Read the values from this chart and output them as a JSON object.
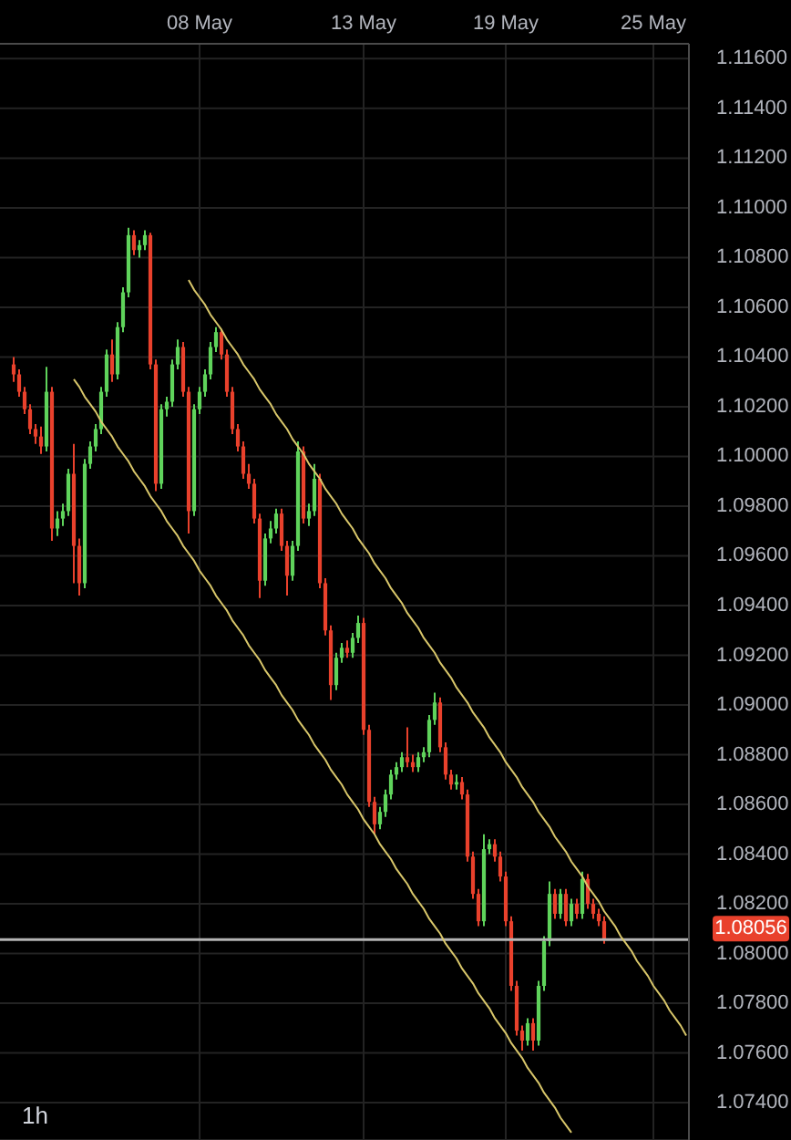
{
  "chart_data": {
    "type": "candlestick",
    "categories": [
      null,
      null,
      null,
      null,
      null,
      null,
      null,
      null,
      null,
      null,
      null,
      null,
      null,
      null,
      null,
      null,
      null,
      null,
      null,
      null,
      null,
      null,
      null,
      null,
      null,
      null,
      null,
      null,
      null,
      null,
      null,
      null,
      null,
      null,
      null,
      null,
      "08 May",
      null,
      null,
      null,
      null,
      null,
      null,
      null,
      null,
      null,
      null,
      null,
      null,
      null,
      null,
      null,
      null,
      null,
      null,
      null,
      null,
      null,
      null,
      null,
      null,
      null,
      null,
      null,
      null,
      null,
      "13 May",
      null,
      null,
      null,
      null,
      null,
      null,
      null,
      null,
      null,
      null,
      null,
      null,
      null,
      null,
      null,
      null,
      null,
      null,
      null,
      null,
      null,
      null,
      null,
      null,
      null,
      "19 May",
      null,
      null,
      null,
      null,
      null,
      null,
      null,
      null,
      null,
      null,
      null,
      null,
      null,
      null,
      null,
      null,
      null,
      null,
      null,
      null,
      null,
      null,
      null,
      null,
      null,
      null,
      "25 May",
      null,
      null,
      null,
      null,
      null,
      null
    ],
    "ohlc": [
      null,
      null,
      [
        1.1037,
        1.104,
        1.103,
        1.1033
      ],
      [
        1.1033,
        1.1035,
        1.1024,
        1.1026
      ],
      [
        1.1026,
        1.1028,
        1.1017,
        1.1019
      ],
      [
        1.1019,
        1.1021,
        1.1009,
        1.1011
      ],
      [
        1.1011,
        1.1013,
        1.1005,
        1.1008
      ],
      [
        1.1008,
        1.1012,
        1.1001,
        1.1004
      ],
      [
        1.1004,
        1.1036,
        1.1002,
        1.1026
      ],
      [
        1.1026,
        1.1028,
        1.0966,
        1.0971
      ],
      [
        1.0971,
        1.0978,
        1.0968,
        1.0975
      ],
      [
        1.0975,
        1.0981,
        1.0972,
        1.0978
      ],
      [
        1.0978,
        1.0995,
        1.0976,
        1.0993
      ],
      [
        1.0993,
        1.1005,
        1.0949,
        1.0964
      ],
      [
        1.0964,
        1.0967,
        1.0944,
        1.0949
      ],
      [
        1.0949,
        1.0999,
        1.0947,
        1.0997
      ],
      [
        1.0997,
        1.1006,
        1.0995,
        1.1004
      ],
      [
        1.1004,
        1.1013,
        1.1002,
        1.1011
      ],
      [
        1.1011,
        1.1028,
        1.1009,
        1.1026
      ],
      [
        1.1026,
        1.1043,
        1.1024,
        1.1041
      ],
      [
        1.1041,
        1.1047,
        1.103,
        1.1033
      ],
      [
        1.1033,
        1.1054,
        1.1031,
        1.1052
      ],
      [
        1.1052,
        1.1068,
        1.105,
        1.1066
      ],
      [
        1.1066,
        1.1092,
        1.1064,
        1.1089
      ],
      [
        1.1089,
        1.1091,
        1.1081,
        1.1083
      ],
      [
        1.1083,
        1.1087,
        1.108,
        1.1085
      ],
      [
        1.1085,
        1.1091,
        1.1083,
        1.1089
      ],
      [
        1.1089,
        1.109,
        1.1035,
        1.1037
      ],
      [
        1.1037,
        1.1039,
        1.0986,
        1.0989
      ],
      [
        1.0989,
        1.1021,
        1.0987,
        1.1019
      ],
      [
        1.1019,
        1.1024,
        1.1016,
        1.1022
      ],
      [
        1.1022,
        1.1039,
        1.102,
        1.1037
      ],
      [
        1.1037,
        1.1047,
        1.1035,
        1.1044
      ],
      [
        1.1044,
        1.1046,
        1.1024,
        1.1026
      ],
      [
        1.1026,
        1.1028,
        1.0969,
        1.0978
      ],
      [
        1.0978,
        1.1021,
        1.0976,
        1.1019
      ],
      [
        1.1019,
        1.1028,
        1.1017,
        1.1026
      ],
      [
        1.1026,
        1.1035,
        1.1024,
        1.1033
      ],
      [
        1.1033,
        1.1046,
        1.1031,
        1.1044
      ],
      [
        1.1044,
        1.1052,
        1.1042,
        1.105
      ],
      [
        1.105,
        1.1051,
        1.1039,
        1.1041
      ],
      [
        1.1041,
        1.1043,
        1.1024,
        1.1026
      ],
      [
        1.1026,
        1.1028,
        1.1009,
        1.1011
      ],
      [
        1.1011,
        1.1013,
        1.1002,
        1.1004
      ],
      [
        1.1004,
        1.1006,
        1.0991,
        1.0993
      ],
      [
        1.0993,
        1.0997,
        1.0987,
        1.0989
      ],
      [
        1.0989,
        1.0991,
        1.0973,
        1.0975
      ],
      [
        1.0975,
        1.0977,
        1.0943,
        1.095
      ],
      [
        1.095,
        1.0969,
        1.0948,
        1.0967
      ],
      [
        1.0967,
        1.0974,
        1.0965,
        1.0971
      ],
      [
        1.0971,
        1.0979,
        1.0969,
        1.0977
      ],
      [
        1.0977,
        1.0979,
        1.0962,
        1.0964
      ],
      [
        1.0964,
        1.0966,
        1.0944,
        1.0952
      ],
      [
        1.0952,
        1.0966,
        1.095,
        1.0964
      ],
      [
        1.0964,
        1.1006,
        1.0962,
        1.1002
      ],
      [
        1.1002,
        1.1004,
        1.0973,
        1.0975
      ],
      [
        1.0975,
        1.0981,
        1.0972,
        1.0978
      ],
      [
        1.0978,
        1.0997,
        1.0976,
        1.0991
      ],
      [
        1.0991,
        1.0993,
        1.0947,
        1.0949
      ],
      [
        1.0949,
        1.0951,
        1.0928,
        1.093
      ],
      [
        1.093,
        1.0932,
        1.0902,
        1.0908
      ],
      [
        1.0908,
        1.0921,
        1.0906,
        1.0919
      ],
      [
        1.0919,
        1.0925,
        1.0917,
        1.0923
      ],
      [
        1.0923,
        1.0926,
        1.0919,
        1.0921
      ],
      [
        1.0921,
        1.0929,
        1.0919,
        1.0927
      ],
      [
        1.0927,
        1.0936,
        1.0925,
        1.0933
      ],
      [
        1.0933,
        1.0935,
        1.0888,
        1.089
      ],
      [
        1.089,
        1.0892,
        1.0859,
        1.0861
      ],
      [
        1.0861,
        1.0863,
        1.0848,
        1.0852
      ],
      [
        1.0852,
        1.0859,
        1.085,
        1.0857
      ],
      [
        1.0857,
        1.0866,
        1.0855,
        1.0864
      ],
      [
        1.0864,
        1.0874,
        1.0862,
        1.0872
      ],
      [
        1.0872,
        1.0877,
        1.087,
        1.0875
      ],
      [
        1.0875,
        1.0881,
        1.0873,
        1.0879
      ],
      [
        1.0879,
        1.0891,
        1.0875,
        1.0877
      ],
      [
        1.0877,
        1.088,
        1.0873,
        1.0875
      ],
      [
        1.0875,
        1.0881,
        1.0873,
        1.0879
      ],
      [
        1.0879,
        1.0883,
        1.0877,
        1.0881
      ],
      [
        1.0881,
        1.0896,
        1.0879,
        1.0894
      ],
      [
        1.0894,
        1.0905,
        1.0892,
        1.0901
      ],
      [
        1.0901,
        1.0903,
        1.0881,
        1.0883
      ],
      [
        1.0883,
        1.0885,
        1.087,
        1.0872
      ],
      [
        1.0872,
        1.0874,
        1.0866,
        1.0868
      ],
      [
        1.0868,
        1.0872,
        1.0866,
        1.0869
      ],
      [
        1.0869,
        1.0871,
        1.0862,
        1.0864
      ],
      [
        1.0864,
        1.0866,
        1.0837,
        1.0839
      ],
      [
        1.0839,
        1.0841,
        1.0822,
        1.0824
      ],
      [
        1.0824,
        1.0826,
        1.0811,
        1.0813
      ],
      [
        1.0813,
        1.0848,
        1.0811,
        1.0842
      ],
      [
        1.0842,
        1.0846,
        1.084,
        1.0844
      ],
      [
        1.0844,
        1.0846,
        1.0837,
        1.0839
      ],
      [
        1.0839,
        1.0841,
        1.0829,
        1.0831
      ],
      [
        1.0831,
        1.0833,
        1.0811,
        1.0813
      ],
      [
        1.0813,
        1.0815,
        1.0785,
        1.0787
      ],
      [
        1.0787,
        1.0789,
        1.0767,
        1.0769
      ],
      [
        1.0769,
        1.0771,
        1.0761,
        1.0765
      ],
      [
        1.0765,
        1.0774,
        1.0763,
        1.0772
      ],
      [
        1.0772,
        1.0774,
        1.0761,
        1.0765
      ],
      [
        1.0765,
        1.0789,
        1.0763,
        1.0787
      ],
      [
        1.0787,
        1.0807,
        1.0785,
        1.0805
      ],
      [
        1.0805,
        1.0829,
        1.0803,
        1.0824
      ],
      [
        1.0824,
        1.0826,
        1.0814,
        1.0816
      ],
      [
        1.0816,
        1.0826,
        1.0814,
        1.0824
      ],
      [
        1.0824,
        1.0826,
        1.0811,
        1.0813
      ],
      [
        1.0813,
        1.0822,
        1.0811,
        1.082
      ],
      [
        1.082,
        1.0822,
        1.0814,
        1.0816
      ],
      [
        1.0816,
        1.0833,
        1.0814,
        1.083
      ],
      [
        1.083,
        1.0832,
        1.0818,
        1.082
      ],
      [
        1.082,
        1.0822,
        1.0814,
        1.0816
      ],
      [
        1.0816,
        1.0818,
        1.0811,
        1.0813
      ],
      [
        1.0813,
        1.0815,
        1.0804,
        1.0806
      ],
      null,
      null,
      null,
      null,
      null,
      null,
      null,
      null,
      null,
      null,
      null,
      null,
      null,
      null,
      null
    ],
    "colors": [
      null,
      null,
      "#e9412c",
      "#e9412c",
      "#e9412c",
      "#e9412c",
      "#e9412c",
      "#e9412c",
      "#5fd35b",
      "#e9412c",
      "#5fd35b",
      "#5fd35b",
      "#5fd35b",
      "#e9412c",
      "#e9412c",
      "#5fd35b",
      "#5fd35b",
      "#5fd35b",
      "#5fd35b",
      "#5fd35b",
      "#e9412c",
      "#5fd35b",
      "#5fd35b",
      "#5fd35b",
      "#e9412c",
      "#5fd35b",
      "#5fd35b",
      "#e9412c",
      "#e9412c",
      "#5fd35b",
      "#5fd35b",
      "#5fd35b",
      "#5fd35b",
      "#e9412c",
      "#e9412c",
      "#5fd35b",
      "#5fd35b",
      "#5fd35b",
      "#5fd35b",
      "#5fd35b",
      "#e9412c",
      "#e9412c",
      "#e9412c",
      "#e9412c",
      "#e9412c",
      "#e9412c",
      "#e9412c",
      "#e9412c",
      "#5fd35b",
      "#5fd35b",
      "#5fd35b",
      "#e9412c",
      "#e9412c",
      "#5fd35b",
      "#5fd35b",
      "#e9412c",
      "#5fd35b",
      "#5fd35b",
      "#e9412c",
      "#e9412c",
      "#e9412c",
      "#5fd35b",
      "#5fd35b",
      "#e9412c",
      "#5fd35b",
      "#5fd35b",
      "#e9412c",
      "#e9412c",
      "#e9412c",
      "#5fd35b",
      "#5fd35b",
      "#5fd35b",
      "#5fd35b",
      "#5fd35b",
      "#e9412c",
      "#e9412c",
      "#5fd35b",
      "#5fd35b",
      "#5fd35b",
      "#5fd35b",
      "#e9412c",
      "#e9412c",
      "#e9412c",
      "#5fd35b",
      "#e9412c",
      "#e9412c",
      "#e9412c",
      "#e9412c",
      "#5fd35b",
      "#5fd35b",
      "#e9412c",
      "#e9412c",
      "#e9412c",
      "#e9412c",
      "#e9412c",
      "#e9412c",
      "#5fd35b",
      "#e9412c",
      "#5fd35b",
      "#5fd35b",
      "#5fd35b",
      "#e9412c",
      "#5fd35b",
      "#e9412c",
      "#5fd35b",
      "#e9412c",
      "#5fd35b",
      "#e9412c",
      "#e9412c",
      "#e9412c",
      "#e9412c",
      null,
      null,
      null,
      null,
      null,
      null,
      null,
      null,
      null,
      null,
      null,
      null,
      null,
      null,
      null
    ],
    "series": [
      {
        "type": "line",
        "color": "#d8c66a",
        "values": [
          null,
          null,
          null,
          null,
          null,
          null,
          null,
          null,
          null,
          null,
          null,
          null,
          null,
          null,
          null,
          null,
          null,
          null,
          null,
          null,
          null,
          null,
          null,
          null,
          null,
          null,
          null,
          null,
          null,
          null,
          null,
          null,
          null,
          null,
          1.1071,
          1.1067,
          1.1064,
          1.1061,
          1.1057,
          1.1054,
          1.1051,
          1.1047,
          1.1044,
          1.1041,
          1.1037,
          1.1034,
          1.1031,
          1.1027,
          1.1024,
          1.1021,
          1.1017,
          1.1014,
          1.1011,
          1.1007,
          1.1004,
          1.1001,
          1.0997,
          1.0994,
          1.0991,
          1.0987,
          1.0984,
          1.0981,
          1.0977,
          1.0974,
          1.0971,
          1.0967,
          1.0964,
          1.0961,
          1.0957,
          1.0954,
          1.0951,
          1.0947,
          1.0944,
          1.0941,
          1.0937,
          1.0934,
          1.0931,
          1.0927,
          1.0924,
          1.0921,
          1.0917,
          1.0914,
          1.0911,
          1.0907,
          1.0904,
          1.0901,
          1.0897,
          1.0894,
          1.0891,
          1.0887,
          1.0884,
          1.0881,
          1.0877,
          1.0874,
          1.0871,
          1.0867,
          1.0864,
          1.0861,
          1.0857,
          1.0854,
          1.0851,
          1.0847,
          1.0844,
          1.0841,
          1.0837,
          1.0834,
          1.0831,
          1.0827,
          1.0824,
          1.0821,
          1.0817,
          1.0814,
          1.0811,
          1.0807,
          1.0804,
          1.0801,
          1.0797,
          1.0794,
          1.0791,
          1.0787,
          1.0784,
          1.0781,
          1.0777,
          1.0774,
          1.0771,
          1.0767
        ]
      },
      {
        "type": "line",
        "color": "#d8c66a",
        "values": [
          null,
          null,
          null,
          null,
          null,
          null,
          null,
          null,
          null,
          null,
          null,
          null,
          null,
          1.1031,
          1.1028,
          1.1024,
          1.1021,
          1.1018,
          1.1014,
          1.1011,
          1.1008,
          1.1004,
          1.1001,
          1.0998,
          1.0994,
          1.0991,
          1.0988,
          1.0984,
          1.0981,
          1.0978,
          1.0974,
          1.0971,
          1.0968,
          1.0964,
          1.0961,
          1.0958,
          1.0954,
          1.0951,
          1.0948,
          1.0944,
          1.0941,
          1.0938,
          1.0934,
          1.0931,
          1.0928,
          1.0924,
          1.0921,
          1.0918,
          1.0914,
          1.0911,
          1.0908,
          1.0904,
          1.0901,
          1.0898,
          1.0894,
          1.0891,
          1.0888,
          1.0884,
          1.0881,
          1.0878,
          1.0874,
          1.0871,
          1.0868,
          1.0864,
          1.0861,
          1.0858,
          1.0854,
          1.0851,
          1.0848,
          1.0844,
          1.0841,
          1.0838,
          1.0834,
          1.0831,
          1.0828,
          1.0824,
          1.0821,
          1.0818,
          1.0814,
          1.0811,
          1.0808,
          1.0804,
          1.0801,
          1.0798,
          1.0794,
          1.0791,
          1.0788,
          1.0784,
          1.0781,
          1.0778,
          1.0774,
          1.0771,
          1.0768,
          1.0764,
          1.0761,
          1.0758,
          1.0754,
          1.0751,
          1.0748,
          1.0744,
          1.0741,
          1.0738,
          1.0734,
          1.0731,
          1.0728,
          null,
          null,
          null,
          null,
          null,
          null,
          null,
          null,
          null,
          null,
          null,
          null,
          null,
          null,
          null,
          null,
          null,
          null,
          null,
          null,
          null
        ]
      }
    ],
    "ylim": [
      1.0725,
      1.1166
    ],
    "yticks": [
      {
        "value": 1.116,
        "label": "1.11600"
      },
      {
        "value": 1.114,
        "label": "1.11400"
      },
      {
        "value": 1.112,
        "label": "1.11200"
      },
      {
        "value": 1.11,
        "label": "1.11000"
      },
      {
        "value": 1.108,
        "label": "1.10800"
      },
      {
        "value": 1.106,
        "label": "1.10600"
      },
      {
        "value": 1.104,
        "label": "1.10400"
      },
      {
        "value": 1.102,
        "label": "1.10200"
      },
      {
        "value": 1.1,
        "label": "1.10000"
      },
      {
        "value": 1.098,
        "label": "1.09800"
      },
      {
        "value": 1.096,
        "label": "1.09600"
      },
      {
        "value": 1.094,
        "label": "1.09400"
      },
      {
        "value": 1.092,
        "label": "1.09200"
      },
      {
        "value": 1.09,
        "label": "1.09000"
      },
      {
        "value": 1.088,
        "label": "1.08800"
      },
      {
        "value": 1.086,
        "label": "1.08600"
      },
      {
        "value": 1.084,
        "label": "1.08400"
      },
      {
        "value": 1.082,
        "label": "1.08200"
      },
      {
        "value": 1.08,
        "label": "1.08000"
      },
      {
        "value": 1.078,
        "label": "1.07800"
      },
      {
        "value": 1.076,
        "label": "1.07600"
      },
      {
        "value": 1.074,
        "label": "1.07400"
      }
    ],
    "grid": true,
    "ref_lines": [
      {
        "axis": "y",
        "value": 1.08056,
        "label": "1.08056",
        "color": "#b4b4b4"
      }
    ],
    "annotations": [
      "1h"
    ]
  }
}
